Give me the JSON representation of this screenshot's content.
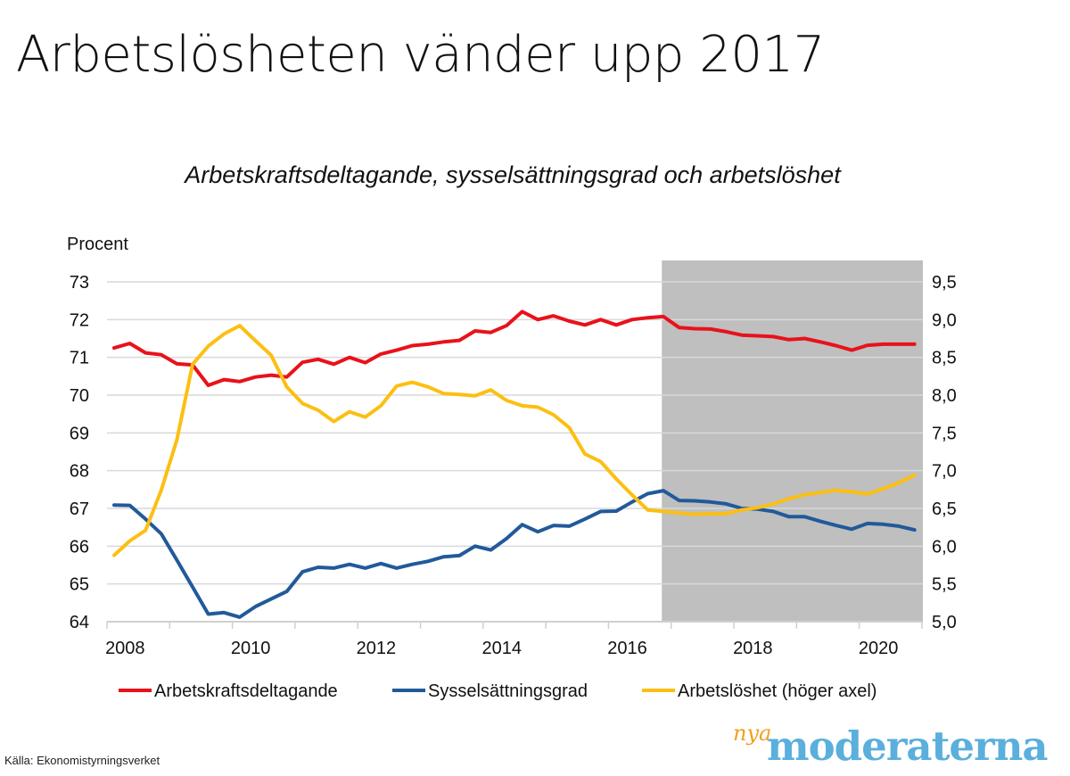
{
  "title": "Arbetslösheten vänder upp 2017",
  "source": "Källa: Ekonomistyrningsverket",
  "logo": {
    "small": "nya",
    "main": "moderaterna"
  },
  "colors": {
    "red": "#e8121b",
    "blue": "#215a9a",
    "yellow": "#fcbf12",
    "shade": "#bfbfbf",
    "grid": "#d9d9d9",
    "logo_blue": "#5aafdc",
    "logo_orange": "#f0a020"
  },
  "chart_data": {
    "type": "line",
    "title": "Arbetskraftsdeltagande, sysselsättningsgrad och arbetslöshet",
    "ylabel": "Procent",
    "frequency": "quarterly",
    "x_start": "2008Q1",
    "x_end": "2020Q4",
    "x_ticks": [
      "2008",
      "2010",
      "2012",
      "2014",
      "2016",
      "2018",
      "2020"
    ],
    "y_left": {
      "lim": [
        64,
        73
      ],
      "ticks": [
        "64",
        "65",
        "66",
        "67",
        "68",
        "69",
        "70",
        "71",
        "72",
        "73"
      ]
    },
    "y_right": {
      "lim": [
        5.0,
        9.5
      ],
      "ticks": [
        "5,0",
        "5,5",
        "6,0",
        "6,5",
        "7,0",
        "7,5",
        "8,0",
        "8,5",
        "9,0",
        "9,5"
      ]
    },
    "shaded_region": {
      "from": "2016Q4",
      "to": "2020Q4",
      "meaning": "prognos"
    },
    "grid": true,
    "legend_position": "bottom",
    "series": [
      {
        "name": "Arbetskraftsdeltagande",
        "axis": "left",
        "color": "#e8121b",
        "values": [
          71.25,
          71.37,
          71.12,
          71.07,
          70.83,
          70.8,
          70.26,
          70.41,
          70.36,
          70.48,
          70.53,
          70.48,
          70.87,
          70.95,
          70.82,
          71.0,
          70.86,
          71.09,
          71.19,
          71.31,
          71.35,
          71.41,
          71.45,
          71.7,
          71.66,
          71.84,
          72.21,
          72.0,
          72.1,
          71.96,
          71.86,
          72.0,
          71.86,
          72.0,
          72.05,
          72.08,
          71.79,
          71.76,
          71.75,
          71.68,
          71.59,
          71.57,
          71.55,
          71.47,
          71.5,
          71.41,
          71.31,
          71.19,
          71.32,
          71.35,
          71.35,
          71.35
        ]
      },
      {
        "name": "Sysselsättningsgrad",
        "axis": "left",
        "color": "#215a9a",
        "values": [
          67.09,
          67.08,
          66.72,
          66.33,
          65.63,
          64.92,
          64.2,
          64.24,
          64.12,
          64.4,
          64.6,
          64.8,
          65.32,
          65.44,
          65.42,
          65.52,
          65.42,
          65.54,
          65.42,
          65.52,
          65.6,
          65.72,
          65.75,
          66.0,
          65.9,
          66.2,
          66.57,
          66.38,
          66.55,
          66.53,
          66.72,
          66.92,
          66.93,
          67.17,
          67.39,
          67.47,
          67.21,
          67.2,
          67.17,
          67.12,
          67.0,
          66.98,
          66.92,
          66.78,
          66.78,
          66.66,
          66.55,
          66.45,
          66.6,
          66.58,
          66.53,
          66.43
        ]
      },
      {
        "name": "Arbetslöshet (höger axel)",
        "axis": "right",
        "color": "#fcbf12",
        "values": [
          5.88,
          6.07,
          6.21,
          6.74,
          7.41,
          8.41,
          8.65,
          8.81,
          8.92,
          8.72,
          8.53,
          8.11,
          7.89,
          7.8,
          7.65,
          7.78,
          7.71,
          7.86,
          8.12,
          8.17,
          8.11,
          8.02,
          8.01,
          7.99,
          8.07,
          7.93,
          7.86,
          7.84,
          7.74,
          7.57,
          7.22,
          7.12,
          6.89,
          6.68,
          6.48,
          6.46,
          6.44,
          6.42,
          6.43,
          6.43,
          6.48,
          6.51,
          6.56,
          6.63,
          6.68,
          6.71,
          6.74,
          6.72,
          6.69,
          6.76,
          6.84,
          6.94
        ]
      }
    ]
  }
}
